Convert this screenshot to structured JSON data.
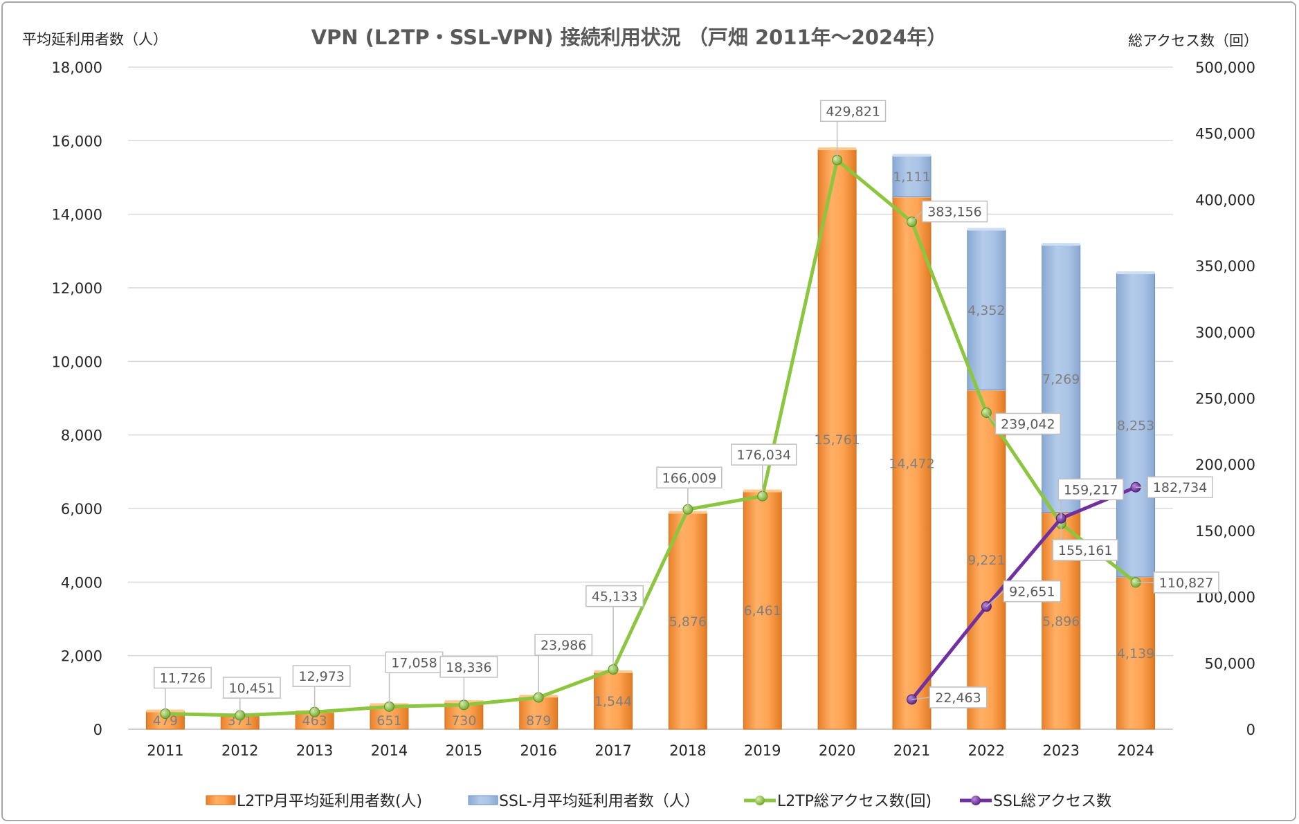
{
  "chart_data": {
    "type": "bar",
    "title": "VPN (L2TP・SSL-VPN) 接続利用状況 （戸畑 2011年～2024年）",
    "ylabel_left": "平均延利用者数（人）",
    "ylabel_right": "総アクセス数（回）",
    "categories": [
      "2011",
      "2012",
      "2013",
      "2014",
      "2015",
      "2016",
      "2017",
      "2018",
      "2019",
      "2020",
      "2021",
      "2022",
      "2023",
      "2024"
    ],
    "ylim_left": [
      0,
      18000
    ],
    "ylim_right": [
      0,
      500000
    ],
    "yticks_left": [
      "0",
      "2,000",
      "4,000",
      "6,000",
      "8,000",
      "10,000",
      "12,000",
      "14,000",
      "16,000",
      "18,000"
    ],
    "yticks_right": [
      "0",
      "50,000",
      "100,000",
      "150,000",
      "200,000",
      "250,000",
      "300,000",
      "350,000",
      "400,000",
      "450,000",
      "500,000"
    ],
    "grid": true,
    "legend_position": "bottom",
    "series": [
      {
        "name": "L2TP月平均延利用者数(人)",
        "kind": "stacked-bar",
        "axis": "left",
        "color": "#f59d48",
        "values": [
          479,
          371,
          463,
          651,
          730,
          879,
          1544,
          5876,
          6461,
          15761,
          14472,
          9221,
          5896,
          4139
        ],
        "labels": [
          "479",
          "371",
          "463",
          "651",
          "730",
          "879",
          "1,544",
          "5,876",
          "6,461",
          "15,761",
          "14,472",
          "9,221",
          "5,896",
          "4,139"
        ]
      },
      {
        "name": "SSL-月平均延利用者数（人）",
        "kind": "stacked-bar",
        "axis": "left",
        "color": "#9dbbe0",
        "values": [
          null,
          null,
          null,
          null,
          null,
          null,
          null,
          null,
          null,
          null,
          1111,
          4352,
          7269,
          8253
        ],
        "labels": [
          "",
          "",
          "",
          "",
          "",
          "",
          "",
          "",
          "",
          "",
          "1,111",
          "4,352",
          "7,269",
          "8,253"
        ]
      },
      {
        "name": "L2TP総アクセス数(回)",
        "kind": "line",
        "axis": "right",
        "color": "#8cc63e",
        "values": [
          11726,
          10451,
          12973,
          17058,
          18336,
          23986,
          45133,
          166009,
          176034,
          429821,
          383156,
          239042,
          155161,
          110827
        ],
        "labels": [
          "11,726",
          "10,451",
          "12,973",
          "17,058",
          "18,336",
          "23,986",
          "45,133",
          "166,009",
          "176,034",
          "429,821",
          "383,156",
          "239,042",
          "155,161",
          "110,827"
        ]
      },
      {
        "name": "SSL総アクセス数",
        "kind": "line",
        "axis": "right",
        "color": "#7030a0",
        "values": [
          null,
          null,
          null,
          null,
          null,
          null,
          null,
          null,
          null,
          null,
          22463,
          92651,
          159217,
          182734
        ],
        "labels": [
          "",
          "",
          "",
          "",
          "",
          "",
          "",
          "",
          "",
          "",
          "22,463",
          "92,651",
          "159,217",
          "182,734"
        ]
      }
    ]
  }
}
